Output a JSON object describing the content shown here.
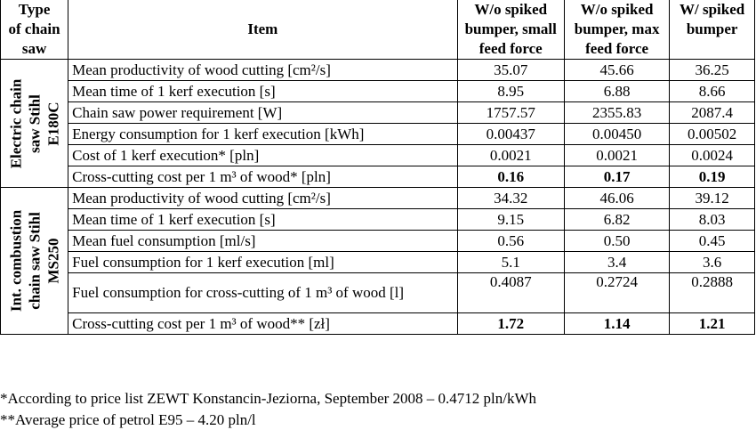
{
  "header": {
    "type_of_chain_saw": [
      "Type",
      "of chain",
      "saw"
    ],
    "item": "Item",
    "col_a": [
      "W/o spiked",
      "bumper, small",
      "feed force"
    ],
    "col_b": [
      "W/o spiked",
      "bumper, max",
      "feed force"
    ],
    "col_c": [
      "W/ spiked",
      "bumper"
    ]
  },
  "groups": [
    {
      "label": [
        "Electric chain",
        "saw Stihl",
        "E180C"
      ],
      "rows": [
        {
          "item": "Mean productivity of wood cutting [cm²/s]",
          "a": "35.07",
          "b": "45.66",
          "c": "36.25",
          "bold": false
        },
        {
          "item": "Mean time of 1 kerf execution [s]",
          "a": "8.95",
          "b": "6.88",
          "c": "8.66",
          "bold": false
        },
        {
          "item": "Chain saw power requirement [W]",
          "a": "1757.57",
          "b": "2355.83",
          "c": "2087.4",
          "bold": false
        },
        {
          "item": "Energy consumption for 1 kerf execution [kWh]",
          "a": "0.00437",
          "b": "0.00450",
          "c": "0.00502",
          "bold": false
        },
        {
          "item": "Cost of 1 kerf execution* [pln]",
          "a": "0.0021",
          "b": "0.0021",
          "c": "0.0024",
          "bold": false
        },
        {
          "item": "Cross-cutting cost per 1 m³ of wood* [pln]",
          "a": "0.16",
          "b": "0.17",
          "c": "0.19",
          "bold": true
        }
      ]
    },
    {
      "label": [
        "Int. combustion",
        "chain saw Stihl",
        "MS250"
      ],
      "rows": [
        {
          "item": "Mean productivity of wood cutting [cm²/s]",
          "a": "34.32",
          "b": "46.06",
          "c": "39.12",
          "bold": false
        },
        {
          "item": "Mean time of 1 kerf execution [s]",
          "a": "9.15",
          "b": "6.82",
          "c": "8.03",
          "bold": false
        },
        {
          "item": "Mean fuel consumption [ml/s]",
          "a": "0.56",
          "b": "0.50",
          "c": "0.45",
          "bold": false
        },
        {
          "item": "Fuel consumption for 1 kerf execution [ml]",
          "a": "5.1",
          "b": "3.4",
          "c": "3.6",
          "bold": false
        },
        {
          "item": "Fuel consumption for cross-cutting of 1 m³ of wood [l]",
          "a": "0.4087",
          "b": "0.2724",
          "c": "0.2888",
          "bold": false
        },
        {
          "item": "Cross-cutting cost per 1 m³ of wood** [zł]",
          "a": "1.72",
          "b": "1.14",
          "c": "1.21",
          "bold": true
        }
      ]
    }
  ],
  "footnotes": [
    "*According to price list ZEWT Konstancin-Jeziorna, September 2008 – 0.4712 pln/kWh",
    "**Average price of petrol E95 – 4.20 pln/l"
  ]
}
